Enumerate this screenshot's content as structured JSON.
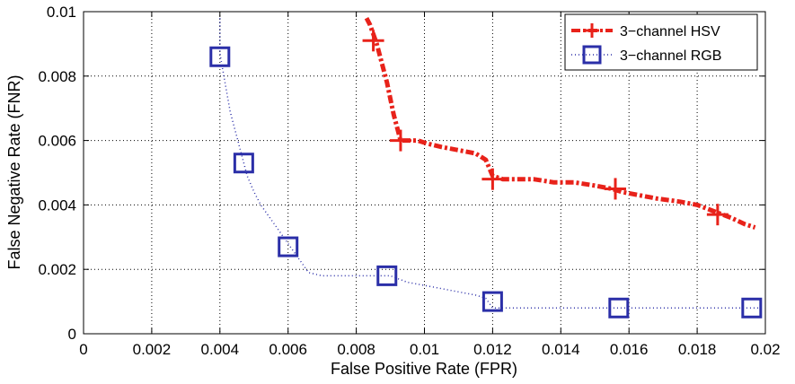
{
  "chart_data": {
    "type": "line",
    "xlabel": "False Positive Rate (FPR)",
    "ylabel": "False Negative Rate (FNR)",
    "xlim": [
      0,
      0.02
    ],
    "ylim": [
      0,
      0.01
    ],
    "x_ticks": [
      "0",
      "0.002",
      "0.004",
      "0.006",
      "0.008",
      "0.01",
      "0.012",
      "0.014",
      "0.016",
      "0.018",
      "0.02"
    ],
    "y_ticks": [
      "0",
      "0.002",
      "0.004",
      "0.006",
      "0.008",
      "0.01"
    ],
    "grid": true,
    "legend_position": "top-right",
    "series": [
      {
        "name": "3−channel HSV",
        "color": "#e8221a",
        "line_style": "dash-dot",
        "marker": "plus",
        "x": [
          0.0083,
          0.0084,
          0.0085,
          0.0086,
          0.0087,
          0.0088,
          0.0089,
          0.009,
          0.0091,
          0.0092,
          0.0093,
          0.0095,
          0.0098,
          0.0101,
          0.0105,
          0.011,
          0.0115,
          0.0118,
          0.012,
          0.0123,
          0.0127,
          0.0132,
          0.0138,
          0.0144,
          0.015,
          0.0155,
          0.0158,
          0.0163,
          0.0168,
          0.0175,
          0.018,
          0.0185,
          0.019,
          0.0194,
          0.0197
        ],
        "y": [
          0.0098,
          0.0096,
          0.0093,
          0.009,
          0.0086,
          0.0082,
          0.0078,
          0.0073,
          0.0068,
          0.0064,
          0.006,
          0.006,
          0.006,
          0.0059,
          0.0058,
          0.0057,
          0.0056,
          0.0054,
          0.0049,
          0.0048,
          0.0048,
          0.0048,
          0.0047,
          0.0047,
          0.0046,
          0.0045,
          0.0044,
          0.0043,
          0.0042,
          0.0041,
          0.004,
          0.0038,
          0.0036,
          0.0034,
          0.0033
        ],
        "marker_x": [
          0.0085,
          0.0093,
          0.012,
          0.0156,
          0.0186
        ],
        "marker_y": [
          0.0091,
          0.006,
          0.0048,
          0.0045,
          0.0037
        ]
      },
      {
        "name": "3−channel RGB",
        "color": "#2b2fa8",
        "line_style": "dotted",
        "marker": "square",
        "x": [
          0.004,
          0.004,
          0.0041,
          0.0042,
          0.0043,
          0.0044,
          0.0045,
          0.0046,
          0.0047,
          0.0048,
          0.005,
          0.0052,
          0.0054,
          0.0056,
          0.0058,
          0.006,
          0.0062,
          0.0064,
          0.0066,
          0.007,
          0.0075,
          0.008,
          0.0085,
          0.009,
          0.0095,
          0.01,
          0.0105,
          0.011,
          0.0115,
          0.0118,
          0.012,
          0.0125,
          0.013,
          0.014,
          0.015,
          0.0157,
          0.0165,
          0.0175,
          0.0185,
          0.0195,
          0.0198
        ],
        "y": [
          0.0098,
          0.0087,
          0.0081,
          0.0075,
          0.0069,
          0.0065,
          0.0061,
          0.0057,
          0.0053,
          0.0049,
          0.0044,
          0.004,
          0.0037,
          0.0034,
          0.0031,
          0.0028,
          0.0025,
          0.0022,
          0.0019,
          0.0018,
          0.0018,
          0.0018,
          0.0018,
          0.0018,
          0.0016,
          0.0015,
          0.0014,
          0.0013,
          0.0012,
          0.0011,
          0.0008,
          0.0008,
          0.0008,
          0.0008,
          0.0008,
          0.0008,
          0.0008,
          0.0008,
          0.0008,
          0.0008,
          0.0008
        ],
        "marker_x": [
          0.004,
          0.0047,
          0.006,
          0.0089,
          0.012,
          0.0157,
          0.0196
        ],
        "marker_y": [
          0.0086,
          0.0053,
          0.0027,
          0.0018,
          0.001,
          0.0008,
          0.0008
        ]
      }
    ]
  }
}
